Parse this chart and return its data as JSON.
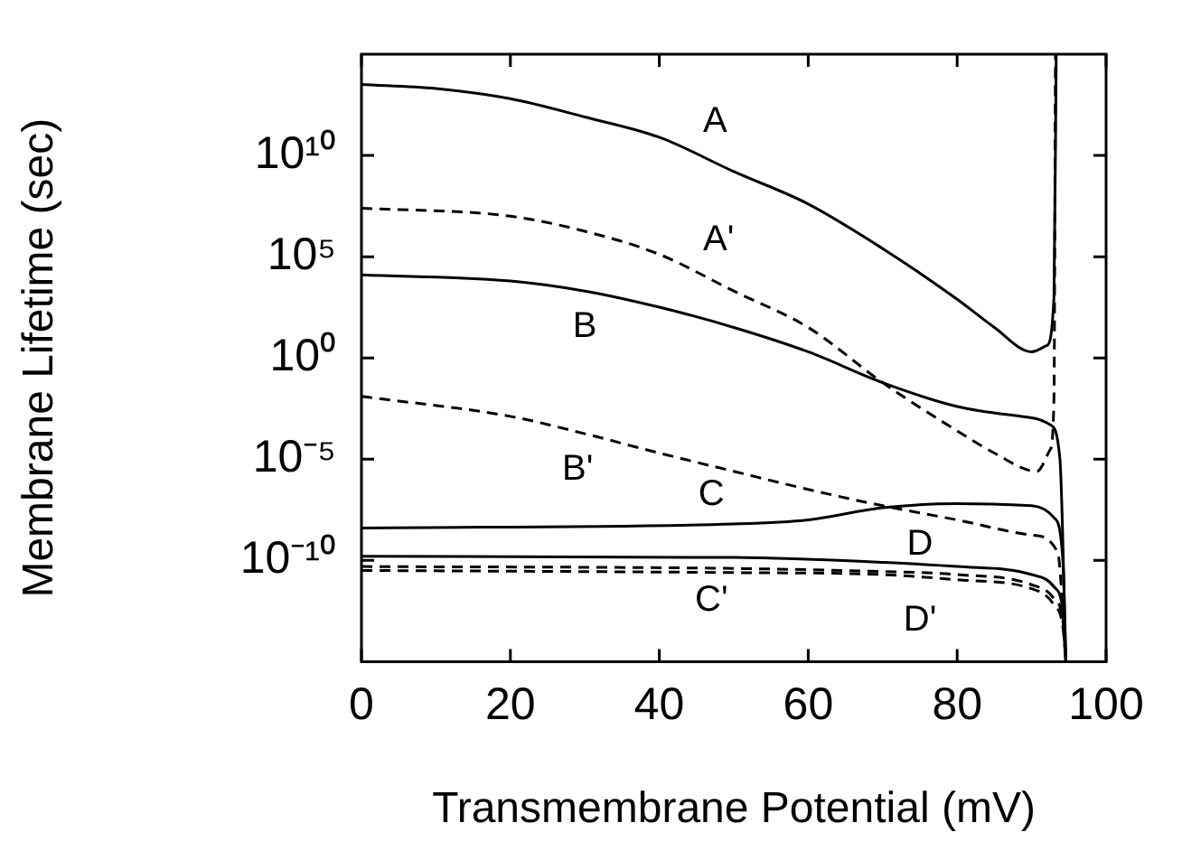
{
  "chart_data": {
    "type": "line",
    "xlabel": "Transmembrane Potential (mV)",
    "ylabel": "Membrane Lifetime (sec)",
    "log": "y",
    "grid": false,
    "marker": "none",
    "xlim": [
      0,
      100
    ],
    "xticks": [
      0,
      20,
      40,
      60,
      80,
      100
    ],
    "ylim": [
      1e-15,
      1000000000000000.0
    ],
    "yticks": [
      {
        "value": 1e-10,
        "label": "10⁻¹⁰"
      },
      {
        "value": 1e-05,
        "label": "10⁻⁵"
      },
      {
        "value": 1,
        "label": "10⁰"
      },
      {
        "value": 100000.0,
        "label": "10⁵"
      },
      {
        "value": 10000000000.0,
        "label": "10¹⁰"
      }
    ],
    "series": [
      {
        "name": "A",
        "color": "#000000",
        "line_style": "solid",
        "x": [
          0,
          10,
          20,
          30,
          40,
          50,
          60,
          70,
          80,
          85,
          90,
          92,
          93,
          93.3
        ],
        "values": [
          32000000000000.0,
          20000000000000.0,
          6300000000000.0,
          790000000000.0,
          79000000000.0,
          1600000000.0,
          40000000.0,
          250000.0,
          790,
          32,
          2,
          4,
          1000,
          1000000000000000.0
        ]
      },
      {
        "name": "A'",
        "color": "#000000",
        "line_style": "dashed",
        "x": [
          0,
          20,
          30,
          40,
          50,
          60,
          70,
          80,
          85,
          90.7,
          92.5,
          93,
          93.2
        ],
        "values": [
          25000000.0,
          10000000.0,
          1800000.0,
          130000.0,
          2000,
          32,
          0.06,
          0.00025,
          2e-05,
          2.5e-06,
          3e-05,
          0.01,
          1000000000000000.0
        ]
      },
      {
        "name": "B",
        "color": "#000000",
        "line_style": "solid",
        "x": [
          0,
          20,
          30,
          40,
          50,
          60,
          70,
          80,
          90,
          92.5,
          93.8,
          94.6
        ],
        "values": [
          12600,
          6300,
          2000,
          320,
          32,
          2,
          0.06,
          0.004,
          0.0011,
          0.0005,
          1e-05,
          1e-15
        ]
      },
      {
        "name": "B'",
        "color": "#000000",
        "line_style": "dashed",
        "x": [
          0,
          20,
          30,
          40,
          50,
          60,
          70,
          80,
          90,
          93.5,
          94.6
        ],
        "values": [
          0.0126,
          0.0013,
          0.00018,
          2e-05,
          2.5e-06,
          3.2e-07,
          5e-08,
          1e-08,
          1.8e-09,
          2.5e-10,
          1e-15
        ]
      },
      {
        "name": "C",
        "color": "#000000",
        "line_style": "solid",
        "x": [
          0,
          50,
          60,
          70,
          80,
          90,
          93,
          94.2,
          94.6
        ],
        "values": [
          4e-09,
          6.3e-09,
          1e-08,
          4e-08,
          6.3e-08,
          5e-08,
          1.3e-08,
          1e-10,
          1e-15
        ]
      },
      {
        "name": "C'",
        "color": "#000000",
        "line_style": "dashed",
        "x": [
          0,
          50,
          70,
          80,
          90,
          93,
          94.2,
          94.6
        ],
        "values": [
          5e-11,
          4e-11,
          2.8e-11,
          2e-11,
          6.3e-12,
          1.3e-12,
          1e-13,
          1e-15
        ]
      },
      {
        "name": "D",
        "color": "#000000",
        "line_style": "solid",
        "x": [
          0,
          50,
          70,
          80,
          90,
          93,
          94.2,
          94.6
        ],
        "values": [
          1.6e-10,
          1.4e-10,
          8e-11,
          5e-11,
          2e-11,
          5e-12,
          3e-13,
          1e-15
        ]
      },
      {
        "name": "D'",
        "color": "#000000",
        "line_style": "dashed",
        "x": [
          0,
          50,
          70,
          80,
          90,
          93,
          94.2,
          94.6
        ],
        "values": [
          3.2e-11,
          2.5e-11,
          2e-11,
          1.1e-11,
          4e-12,
          6.3e-13,
          5e-14,
          1e-15
        ]
      }
    ]
  }
}
